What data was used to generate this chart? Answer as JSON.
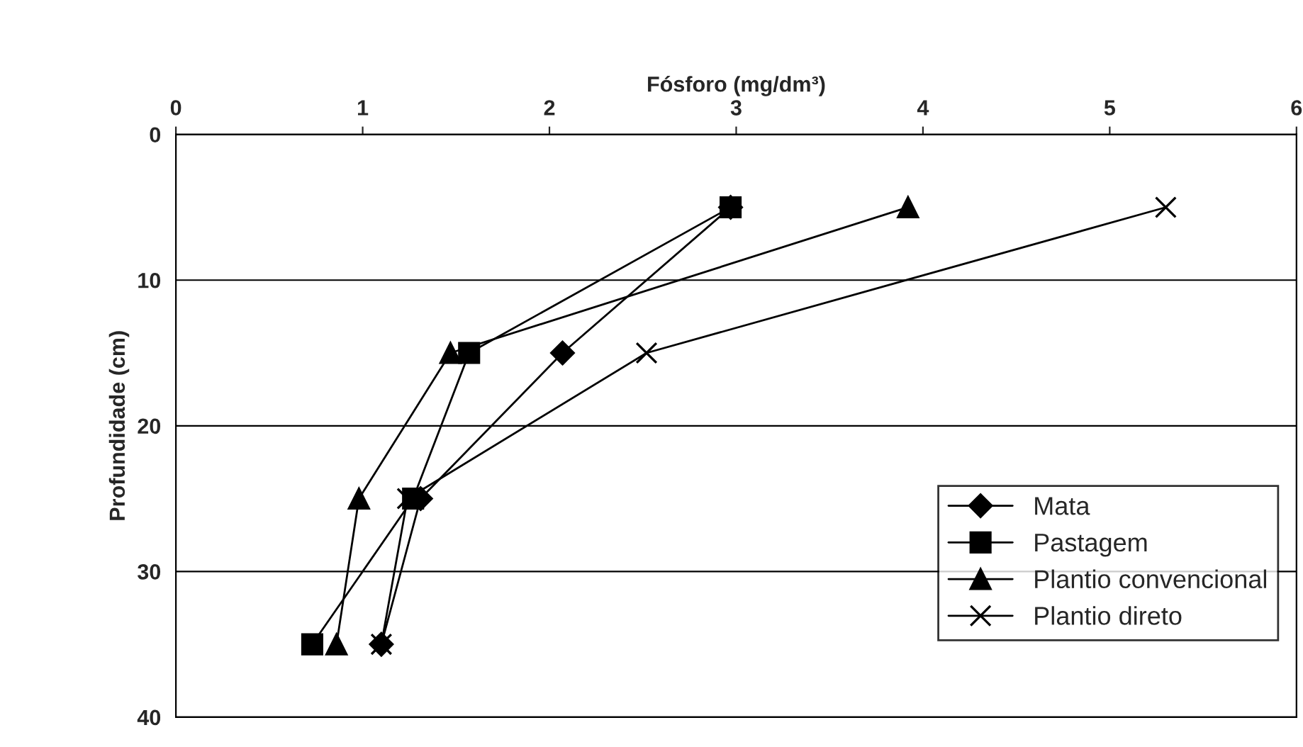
{
  "chart_data": {
    "type": "line",
    "xlabel": "Fósforo (mg/dm³)",
    "ylabel": "Profundidade (cm)",
    "xlim": [
      0,
      6
    ],
    "xticks": [
      0,
      1,
      2,
      3,
      4,
      5,
      6
    ],
    "ylim": [
      40,
      0
    ],
    "yticks": [
      0,
      10,
      20,
      30,
      40
    ],
    "grid": "y",
    "legend": "bottom right",
    "series": [
      {
        "name": "Mata",
        "color": "#000000",
        "marker": "diamond",
        "x": [
          2.97,
          2.07,
          1.31,
          1.1
        ],
        "values": [
          5,
          15,
          25,
          35
        ]
      },
      {
        "name": "Pastagem",
        "color": "#000000",
        "marker": "square",
        "x": [
          2.97,
          1.57,
          1.27,
          0.73
        ],
        "values": [
          5,
          15,
          25,
          35
        ]
      },
      {
        "name": "Plantio convencional",
        "color": "#000000",
        "marker": "triangle",
        "x": [
          3.92,
          1.47,
          0.98,
          0.86
        ],
        "values": [
          5,
          15,
          25,
          35
        ]
      },
      {
        "name": "Plantio direto",
        "color": "#000000",
        "marker": "cross",
        "x": [
          5.3,
          2.52,
          1.24,
          1.1
        ],
        "values": [
          5,
          15,
          25,
          35
        ]
      }
    ]
  }
}
